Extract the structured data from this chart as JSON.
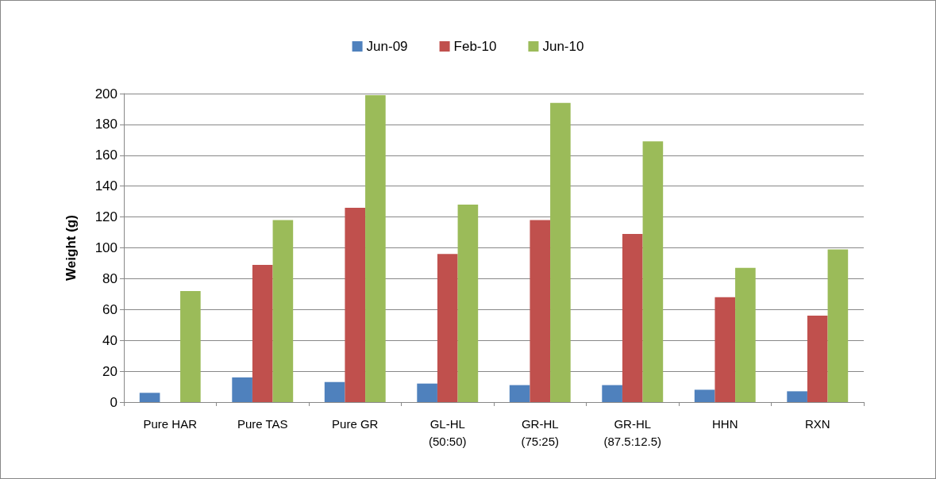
{
  "chart_data": {
    "type": "bar",
    "ylabel": "Weight (g)",
    "categories": [
      "Pure HAR",
      "Pure TAS",
      "Pure GR",
      "GL-HL\n(50:50)",
      "GR-HL\n(75:25)",
      "GR-HL\n(87.5:12.5)",
      "HHN",
      "RXN"
    ],
    "series": [
      {
        "name": "Jun-09",
        "color": "#4f81bd",
        "values": [
          6,
          16,
          13,
          12,
          11,
          11,
          8,
          7
        ]
      },
      {
        "name": "Feb-10",
        "color": "#c0504d",
        "values": [
          null,
          89,
          126,
          96,
          118,
          109,
          68,
          56
        ]
      },
      {
        "name": "Jun-10",
        "color": "#9bbb59",
        "values": [
          72,
          118,
          199,
          128,
          194,
          169,
          87,
          99
        ]
      }
    ],
    "ylim": [
      0,
      200
    ],
    "yticks": [
      0,
      20,
      40,
      60,
      80,
      100,
      120,
      140,
      160,
      180,
      200
    ],
    "grid": "y",
    "legend": "top"
  }
}
